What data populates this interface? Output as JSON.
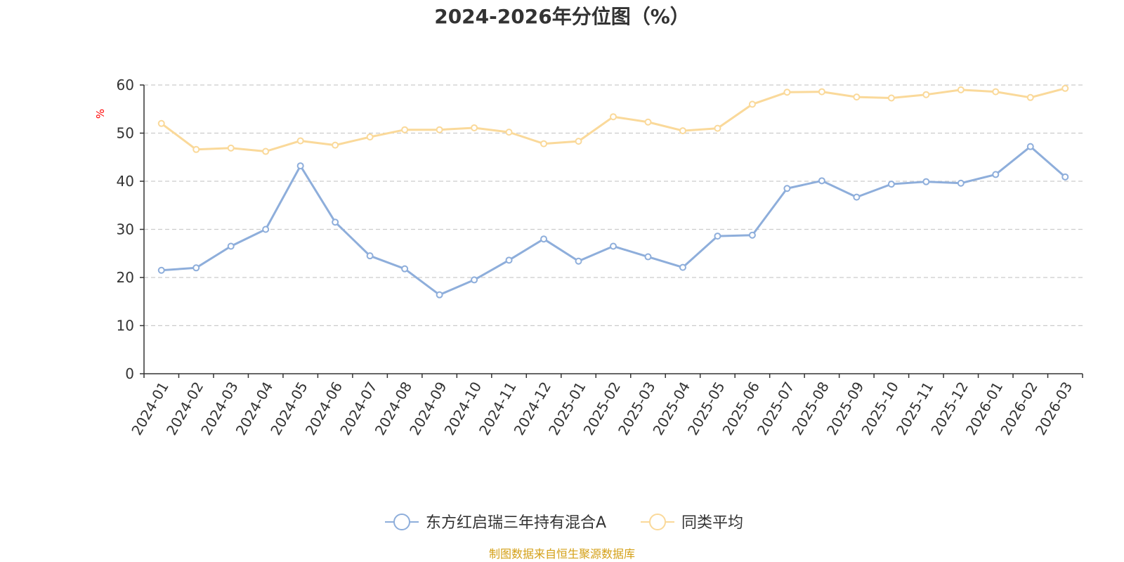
{
  "chart_data": {
    "type": "line",
    "title": "2024-2026年分位图（%）",
    "ylabel": "%",
    "xlabel": "",
    "ylim": [
      0,
      60
    ],
    "yticks": [
      0,
      10,
      20,
      30,
      40,
      50,
      60
    ],
    "grid": true,
    "legend_position": "bottom-center",
    "categories": [
      "2024-01",
      "2024-02",
      "2024-03",
      "2024-04",
      "2024-05",
      "2024-06",
      "2024-07",
      "2024-08",
      "2024-09",
      "2024-10",
      "2024-11",
      "2024-12",
      "2025-01",
      "2025-02",
      "2025-03",
      "2025-04",
      "2025-05",
      "2025-06",
      "2025-07",
      "2025-08",
      "2025-09",
      "2025-10",
      "2025-11",
      "2025-12",
      "2026-01",
      "2026-02",
      "2026-03"
    ],
    "series": [
      {
        "name": "东方红启瑞三年持有混合A",
        "color": "#8eaedb",
        "values": [
          21.5,
          22.0,
          26.5,
          30.0,
          43.2,
          31.5,
          24.5,
          21.8,
          16.4,
          19.5,
          23.6,
          28.0,
          23.4,
          26.5,
          24.3,
          22.1,
          28.6,
          28.8,
          38.5,
          40.1,
          36.7,
          39.4,
          39.9,
          39.6,
          41.4,
          47.2,
          40.9
        ]
      },
      {
        "name": "同类平均",
        "color": "#fad99a",
        "values": [
          52.0,
          46.6,
          46.9,
          46.2,
          48.4,
          47.5,
          49.2,
          50.7,
          50.7,
          51.1,
          50.2,
          47.8,
          48.3,
          53.4,
          52.3,
          50.5,
          51.0,
          56.0,
          58.5,
          58.6,
          57.5,
          57.3,
          58.0,
          59.0,
          58.6,
          57.4,
          59.3
        ]
      }
    ],
    "source_note": "制图数据来自恒生聚源数据库",
    "source_color": "#d4a017",
    "unit_color": "#ff0000",
    "axis_color": "#333333",
    "grid_color": "#cccccc"
  }
}
